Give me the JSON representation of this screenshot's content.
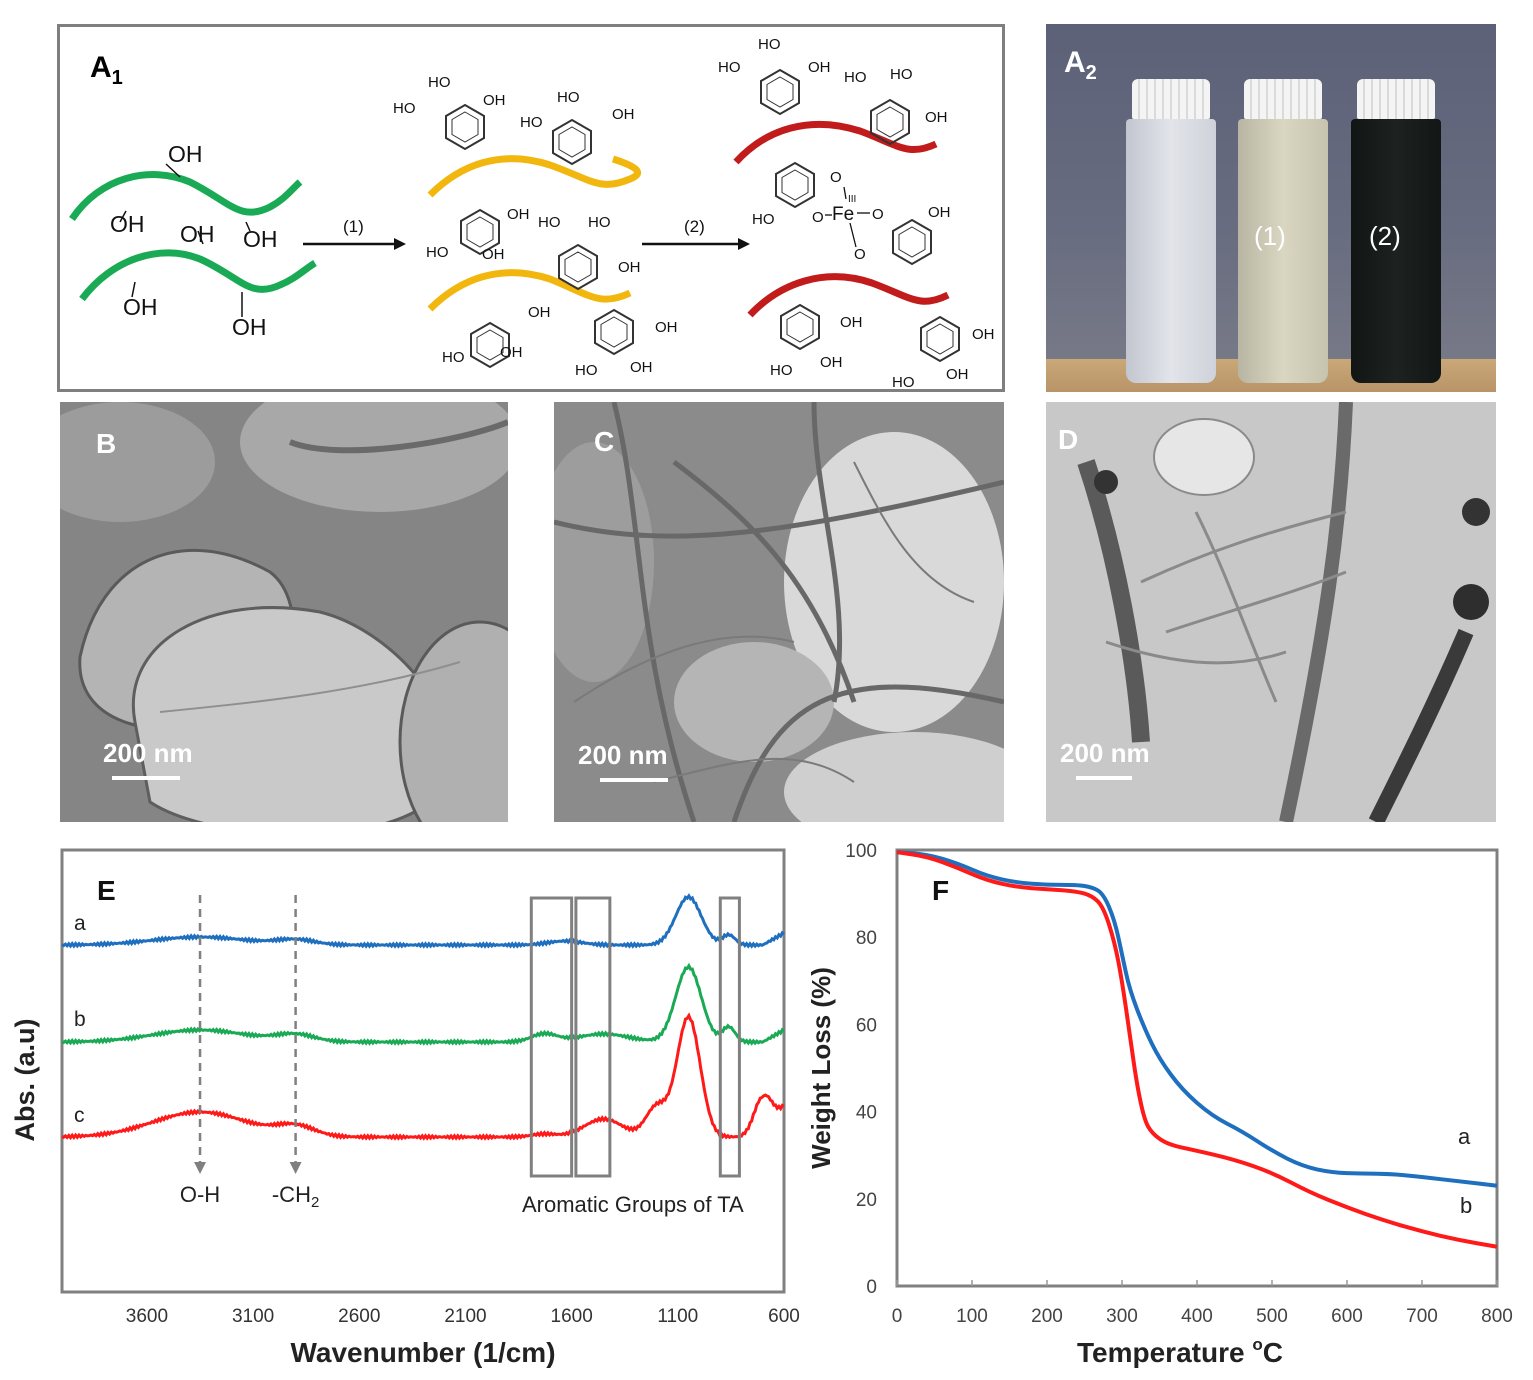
{
  "panels": {
    "a1": {
      "label": "A",
      "label_sub": "1",
      "step1": "(1)",
      "step2": "(2)",
      "groups": {
        "oh": "OH",
        "ho": "HO",
        "fe": "Fe",
        "fe_ox": "III",
        "o": "O"
      },
      "colors": {
        "cellulose": "#1aaa55",
        "ta_coated": "#f2b70f",
        "fe_complex": "#c21b1b"
      }
    },
    "a2": {
      "label": "A",
      "label_sub": "2",
      "vial1": "(1)",
      "vial2": "(2)"
    },
    "b": {
      "label": "B",
      "scale": "200 nm"
    },
    "c": {
      "label": "C",
      "scale": "200 nm"
    },
    "d": {
      "label": "D",
      "scale": "200 nm"
    }
  },
  "chart_data": [
    {
      "id": "E",
      "type": "line",
      "title": "E",
      "xlabel": "Wavenumber (1/cm)",
      "ylabel": "Abs. (a.u)",
      "xlim": [
        4000,
        600
      ],
      "x_ticks": [
        3600,
        3100,
        2600,
        2100,
        1600,
        1100,
        600
      ],
      "series": [
        {
          "name": "a",
          "color": "#1f6fbf"
        },
        {
          "name": "b",
          "color": "#1aaa55"
        },
        {
          "name": "c",
          "color": "#ff1a1a"
        }
      ],
      "annotations": [
        {
          "text": "O-H",
          "x": 3350
        },
        {
          "text": "-CH",
          "sub": "2",
          "x": 2900
        }
      ],
      "boxes": [
        [
          1790,
          1600
        ],
        [
          1580,
          1420
        ],
        [
          900,
          810
        ]
      ],
      "box_label": "Aromatic Groups of TA"
    },
    {
      "id": "F",
      "type": "line",
      "title": "F",
      "xlabel": "Temperature",
      "xlabel_unit_sup": "o",
      "xlabel_unit": "C",
      "ylabel": "Weight Loss (%)",
      "xlim": [
        0,
        800
      ],
      "ylim": [
        0,
        100
      ],
      "x_ticks": [
        0,
        100,
        200,
        300,
        400,
        500,
        600,
        700,
        800
      ],
      "y_ticks": [
        0,
        20,
        40,
        60,
        80,
        100
      ],
      "series": [
        {
          "name": "a",
          "color": "#1f6fbf",
          "x": [
            0,
            40,
            80,
            120,
            160,
            200,
            240,
            260,
            275,
            290,
            300,
            310,
            330,
            350,
            380,
            420,
            460,
            500,
            540,
            580,
            620,
            660,
            700,
            750,
            800
          ],
          "y": [
            99.5,
            99,
            97,
            94,
            92.5,
            92,
            92,
            91.5,
            90,
            84,
            76,
            68,
            59,
            52,
            45,
            39,
            35.5,
            31,
            27.5,
            26,
            25.8,
            25.7,
            25,
            24,
            23
          ]
        },
        {
          "name": "b",
          "color": "#ff1a1a",
          "x": [
            0,
            40,
            80,
            120,
            160,
            200,
            240,
            260,
            275,
            290,
            300,
            310,
            320,
            330,
            340,
            360,
            400,
            450,
            500,
            550,
            600,
            650,
            700,
            750,
            800
          ],
          "y": [
            99.5,
            98.5,
            96,
            93,
            91.5,
            91,
            90.5,
            89.5,
            87,
            79,
            70,
            58,
            46,
            38,
            35,
            32.5,
            31,
            29,
            26,
            21.5,
            18,
            15,
            12.5,
            10.5,
            9
          ]
        }
      ]
    }
  ]
}
